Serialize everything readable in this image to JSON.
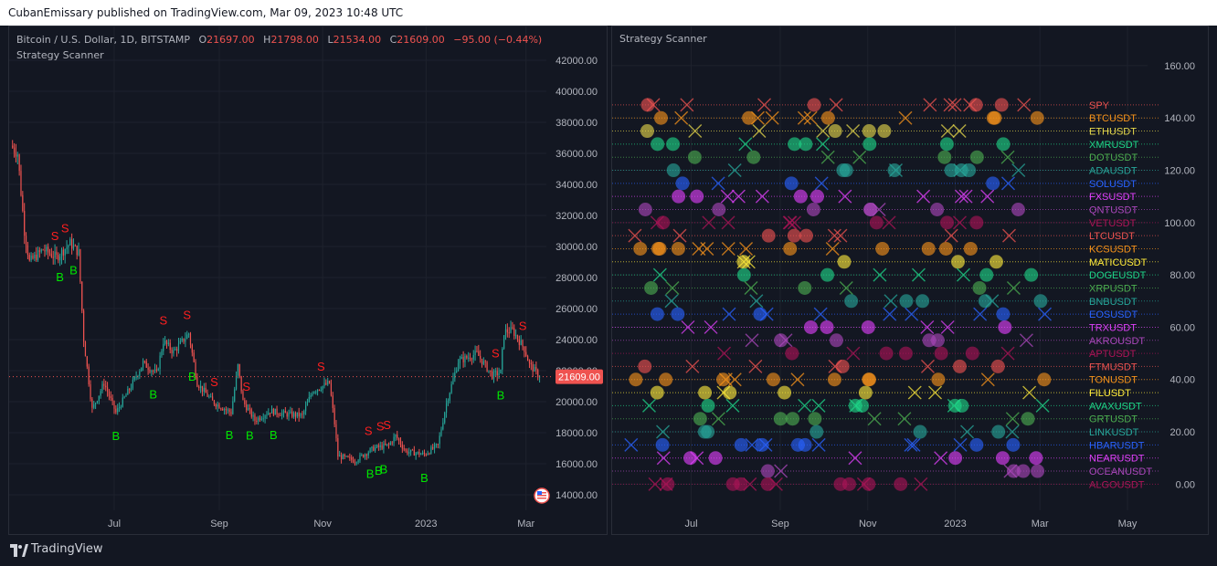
{
  "header": {
    "published_text": "CubanEmissary published on TradingView.com, Mar 09, 2023 10:48 UTC"
  },
  "left_chart": {
    "symbol": "Bitcoin / U.S. Dollar, 1D, BITSTAMP",
    "ohlc": {
      "o_label": "O",
      "o": "21697.00",
      "h_label": "H",
      "h": "21798.00",
      "l_label": "L",
      "l": "21534.00",
      "c_label": "C",
      "c": "21609.00",
      "change": "−95.00 (−0.44%)"
    },
    "indicator": "Strategy Scanner",
    "price_tag": "21609.00",
    "colors": {
      "up": "#26a69a",
      "down": "#ef5350",
      "buy": "#00e600",
      "sell": "#ff1f1f"
    }
  },
  "right_chart": {
    "indicator": "Strategy Scanner",
    "y_ticks": [
      "160.00",
      "140.00",
      "120.00",
      "100.00",
      "80.00",
      "60.00",
      "40.00",
      "20.00",
      "0.00"
    ],
    "x_ticks": [
      "Jul",
      "Sep",
      "Nov",
      "2023",
      "Mar",
      "May"
    ]
  },
  "chart_data": [
    {
      "type": "candlestick",
      "title": "Bitcoin / U.S. Dollar, 1D, BITSTAMP",
      "ylabel": "",
      "ylim": [
        13000,
        43000
      ],
      "y_ticks": [
        "42000.00",
        "40000.00",
        "38000.00",
        "36000.00",
        "34000.00",
        "32000.00",
        "30000.00",
        "28000.00",
        "26000.00",
        "24000.00",
        "22000.00",
        "20000.00",
        "18000.00",
        "16000.00",
        "14000.00"
      ],
      "x_ticks": [
        "Jul",
        "Sep",
        "Nov",
        "2023",
        "Mar"
      ],
      "last_close": 21609,
      "close_path": [
        [
          "2022-05-01",
          36500
        ],
        [
          "2022-05-05",
          36000
        ],
        [
          "2022-05-09",
          31000
        ],
        [
          "2022-05-12",
          29000
        ],
        [
          "2022-05-20",
          29800
        ],
        [
          "2022-05-28",
          29300
        ],
        [
          "2022-06-05",
          30200
        ],
        [
          "2022-06-10",
          29600
        ],
        [
          "2022-06-13",
          24000
        ],
        [
          "2022-06-18",
          19500
        ],
        [
          "2022-06-25",
          21200
        ],
        [
          "2022-07-02",
          19300
        ],
        [
          "2022-07-10",
          20800
        ],
        [
          "2022-07-18",
          22500
        ],
        [
          "2022-07-26",
          21800
        ],
        [
          "2022-07-30",
          23900
        ],
        [
          "2022-08-05",
          23200
        ],
        [
          "2022-08-14",
          24400
        ],
        [
          "2022-08-19",
          21200
        ],
        [
          "2022-08-28",
          20000
        ],
        [
          "2022-09-08",
          19300
        ],
        [
          "2022-09-12",
          22300
        ],
        [
          "2022-09-15",
          20000
        ],
        [
          "2022-09-22",
          18800
        ],
        [
          "2022-10-01",
          19400
        ],
        [
          "2022-10-10",
          19200
        ],
        [
          "2022-10-20",
          19100
        ],
        [
          "2022-10-26",
          20700
        ],
        [
          "2022-11-05",
          21200
        ],
        [
          "2022-11-08",
          18600
        ],
        [
          "2022-11-10",
          16500
        ],
        [
          "2022-11-20",
          16200
        ],
        [
          "2022-12-01",
          17000
        ],
        [
          "2022-12-10",
          17200
        ],
        [
          "2022-12-14",
          17800
        ],
        [
          "2022-12-20",
          16800
        ],
        [
          "2022-12-31",
          16600
        ],
        [
          "2023-01-08",
          17200
        ],
        [
          "2023-01-13",
          19900
        ],
        [
          "2023-01-20",
          22600
        ],
        [
          "2023-01-31",
          23100
        ],
        [
          "2023-02-09",
          21700
        ],
        [
          "2023-02-14",
          21900
        ],
        [
          "2023-02-16",
          24500
        ],
        [
          "2023-02-21",
          24600
        ],
        [
          "2023-02-28",
          23400
        ],
        [
          "2023-03-03",
          22400
        ],
        [
          "2023-03-09",
          21609
        ]
      ],
      "signals": [
        {
          "type": "S",
          "date": "2022-05-27"
        },
        {
          "type": "S",
          "date": "2022-06-02"
        },
        {
          "type": "B",
          "date": "2022-05-30"
        },
        {
          "type": "B",
          "date": "2022-06-07"
        },
        {
          "type": "S",
          "date": "2022-07-30"
        },
        {
          "type": "S",
          "date": "2022-08-13"
        },
        {
          "type": "B",
          "date": "2022-07-02"
        },
        {
          "type": "B",
          "date": "2022-07-24"
        },
        {
          "type": "B",
          "date": "2022-08-16"
        },
        {
          "type": "S",
          "date": "2022-08-29"
        },
        {
          "type": "S",
          "date": "2022-09-17"
        },
        {
          "type": "B",
          "date": "2022-09-07"
        },
        {
          "type": "B",
          "date": "2022-09-19"
        },
        {
          "type": "B",
          "date": "2022-10-03"
        },
        {
          "type": "S",
          "date": "2022-10-31"
        },
        {
          "type": "S",
          "date": "2022-11-28"
        },
        {
          "type": "S",
          "date": "2022-12-05"
        },
        {
          "type": "S",
          "date": "2022-12-09"
        },
        {
          "type": "B",
          "date": "2022-11-29"
        },
        {
          "type": "B",
          "date": "2022-12-04"
        },
        {
          "type": "B",
          "date": "2022-12-07"
        },
        {
          "type": "B",
          "date": "2022-12-31"
        },
        {
          "type": "S",
          "date": "2023-02-11"
        },
        {
          "type": "S",
          "date": "2023-02-27"
        },
        {
          "type": "B",
          "date": "2023-02-14"
        }
      ]
    },
    {
      "type": "scatter",
      "title": "Strategy Scanner",
      "xlabel": "",
      "ylabel": "",
      "ylim": [
        -10,
        168
      ],
      "y_ticks": [
        "160.00",
        "140.00",
        "120.00",
        "100.00",
        "80.00",
        "60.00",
        "40.00",
        "20.00",
        "0.00"
      ],
      "x_ticks": [
        "Jul",
        "Sep",
        "Nov",
        "2023",
        "Mar",
        "May"
      ],
      "legend": "right, one label per row",
      "rows": [
        {
          "name": "SPY",
          "y": 145,
          "color": "#ef5350"
        },
        {
          "name": "BTCUSDT",
          "y": 140,
          "color": "#f7931a"
        },
        {
          "name": "ETHUSDT",
          "y": 135,
          "color": "#e6d84b"
        },
        {
          "name": "XMRUSDT",
          "y": 130,
          "color": "#1ed688"
        },
        {
          "name": "DOTUSDT",
          "y": 125,
          "color": "#4caf50"
        },
        {
          "name": "ADAUSDT",
          "y": 120,
          "color": "#26a69a"
        },
        {
          "name": "SOLUSDT",
          "y": 115,
          "color": "#2962ff"
        },
        {
          "name": "FXSUSDT",
          "y": 110,
          "color": "#e040fb"
        },
        {
          "name": "QNTUSDT",
          "y": 105,
          "color": "#ab47bc"
        },
        {
          "name": "VETUSDT",
          "y": 100,
          "color": "#ad1457"
        },
        {
          "name": "LTCUSDT",
          "y": 95,
          "color": "#ef5350"
        },
        {
          "name": "KCSUSDT",
          "y": 90,
          "color": "#f7931a"
        },
        {
          "name": "MATICUSDT",
          "y": 85,
          "color": "#ffeb3b"
        },
        {
          "name": "DOGEUSDT",
          "y": 80,
          "color": "#1ed688"
        },
        {
          "name": "XRPUSDT",
          "y": 75,
          "color": "#4caf50"
        },
        {
          "name": "BNBUSDT",
          "y": 70,
          "color": "#26a69a"
        },
        {
          "name": "EOSUSDT",
          "y": 65,
          "color": "#2962ff"
        },
        {
          "name": "TRXUSDT",
          "y": 60,
          "color": "#e040fb"
        },
        {
          "name": "AKROUSDT",
          "y": 55,
          "color": "#ab47bc"
        },
        {
          "name": "APTUSDT",
          "y": 50,
          "color": "#ad1457"
        },
        {
          "name": "FTMUSDT",
          "y": 45,
          "color": "#ef5350"
        },
        {
          "name": "TONUSDT",
          "y": 40,
          "color": "#f7931a"
        },
        {
          "name": "FILUSDT",
          "y": 35,
          "color": "#ffeb3b"
        },
        {
          "name": "AVAXUSDT",
          "y": 30,
          "color": "#1ed688"
        },
        {
          "name": "GRTUSDT",
          "y": 25,
          "color": "#4caf50"
        },
        {
          "name": "LINKUSDT",
          "y": 20,
          "color": "#26a69a"
        },
        {
          "name": "HBARUSDT",
          "y": 15,
          "color": "#2962ff"
        },
        {
          "name": "NEARUSDT",
          "y": 10,
          "color": "#e040fb"
        },
        {
          "name": "OCEANUSDT",
          "y": 5,
          "color": "#ab47bc"
        },
        {
          "name": "ALGOUSDT",
          "y": 0,
          "color": "#ad1457"
        }
      ]
    }
  ],
  "footer": {
    "brand": "TradingView"
  }
}
